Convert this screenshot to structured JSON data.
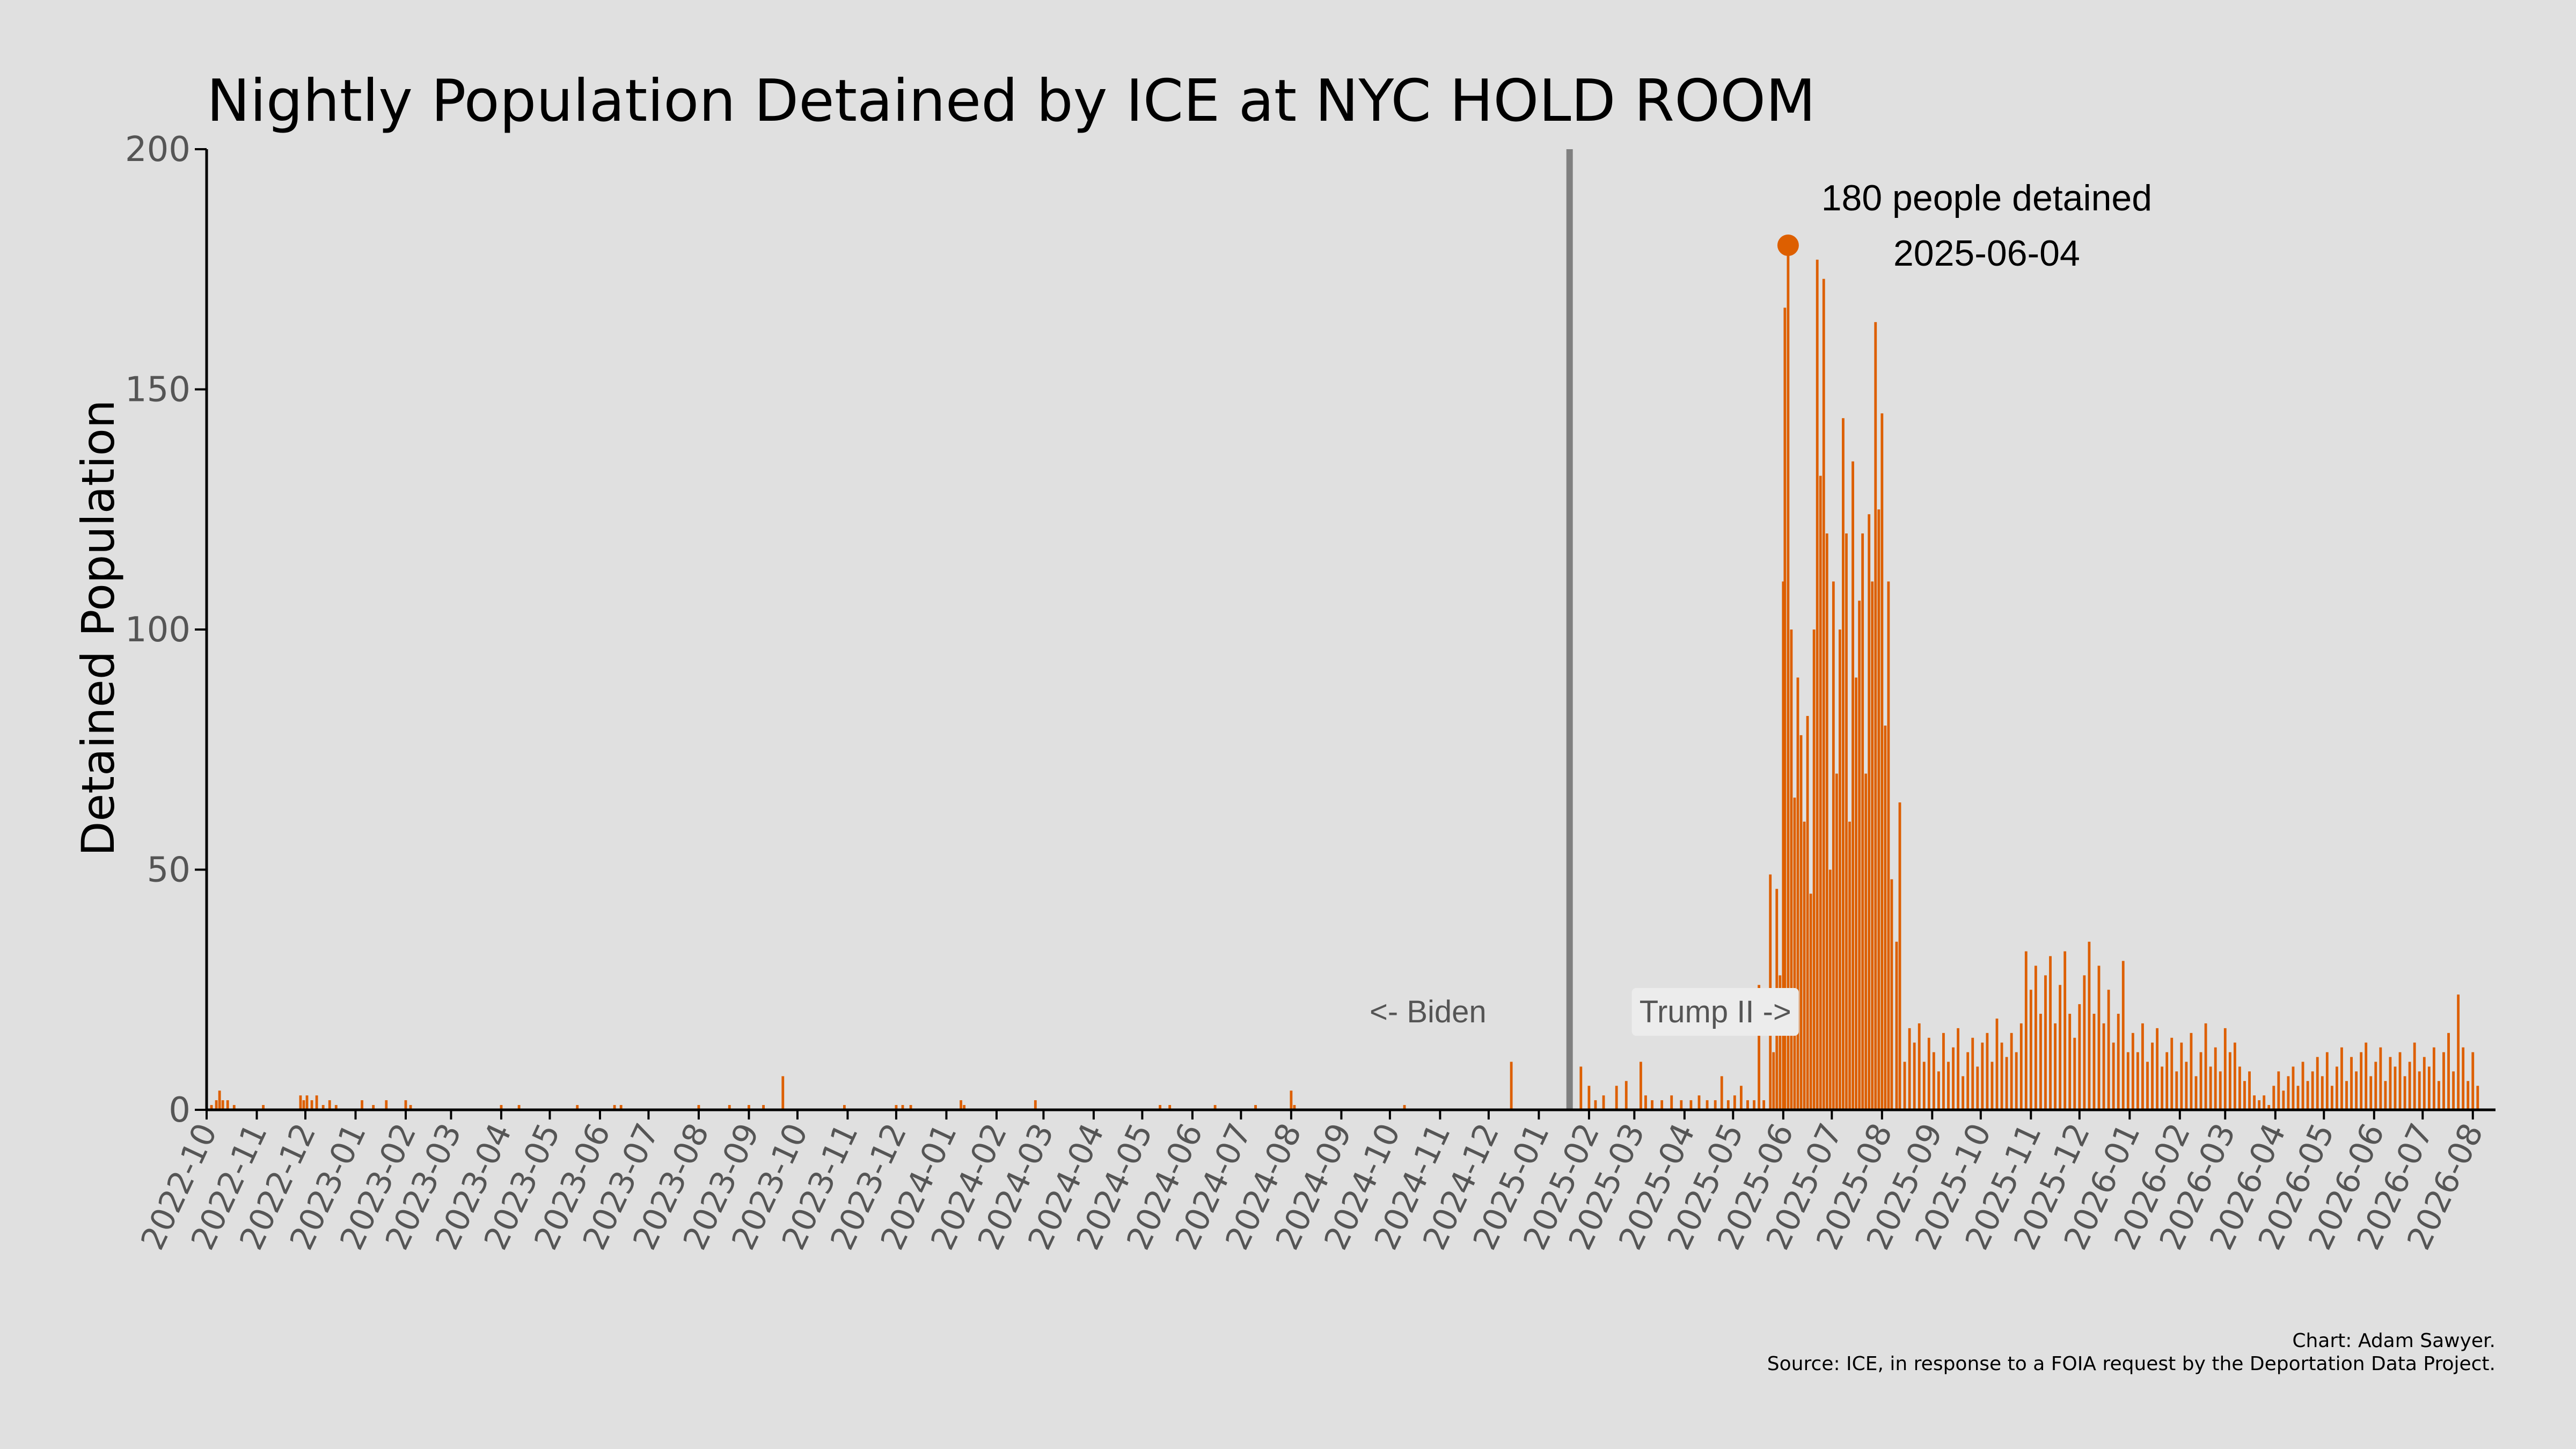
{
  "chart_data": {
    "type": "bar",
    "title": "Nightly Population Detained by ICE at NYC HOLD ROOM",
    "ylabel": "Detained Population",
    "xlabel": "",
    "ylim": [
      0,
      200
    ],
    "yticks": [
      0,
      50,
      100,
      150,
      200
    ],
    "xlim": [
      "2022-10-01",
      "2026-08-15"
    ],
    "xticks": [
      "2022-10",
      "2022-11",
      "2022-12",
      "2023-01",
      "2023-02",
      "2023-03",
      "2023-04",
      "2023-05",
      "2023-06",
      "2023-07",
      "2023-08",
      "2023-09",
      "2023-10",
      "2023-11",
      "2023-12",
      "2024-01",
      "2024-02",
      "2024-03",
      "2024-04",
      "2024-05",
      "2024-06",
      "2024-07",
      "2024-08",
      "2024-09",
      "2024-10",
      "2024-11",
      "2024-12",
      "2025-01",
      "2025-02",
      "2025-03",
      "2025-04",
      "2025-05",
      "2025-06",
      "2025-07",
      "2025-08",
      "2025-09",
      "2025-10",
      "2025-11",
      "2025-12",
      "2026-01",
      "2026-02",
      "2026-03",
      "2026-04",
      "2026-05",
      "2026-06",
      "2026-07",
      "2026-08"
    ],
    "grid": false,
    "bar_color": "#dd5f00",
    "divider_date": "2025-01-20",
    "divider_color": "#808080",
    "series": [
      {
        "values": [
          [
            "2022-10-01",
            3
          ],
          [
            "2022-10-04",
            1
          ],
          [
            "2022-10-07",
            2
          ],
          [
            "2022-10-09",
            4
          ],
          [
            "2022-10-11",
            2
          ],
          [
            "2022-10-14",
            2
          ],
          [
            "2022-10-18",
            1
          ],
          [
            "2022-11-05",
            1
          ],
          [
            "2022-11-28",
            3
          ],
          [
            "2022-11-30",
            2
          ],
          [
            "2022-12-02",
            3
          ],
          [
            "2022-12-05",
            2
          ],
          [
            "2022-12-08",
            3
          ],
          [
            "2022-12-12",
            1
          ],
          [
            "2022-12-16",
            2
          ],
          [
            "2022-12-20",
            1
          ],
          [
            "2023-01-05",
            2
          ],
          [
            "2023-01-12",
            1
          ],
          [
            "2023-01-20",
            2
          ],
          [
            "2023-02-01",
            2
          ],
          [
            "2023-02-04",
            1
          ],
          [
            "2023-04-01",
            1
          ],
          [
            "2023-04-12",
            1
          ],
          [
            "2023-05-18",
            1
          ],
          [
            "2023-06-10",
            1
          ],
          [
            "2023-06-14",
            1
          ],
          [
            "2023-08-01",
            1
          ],
          [
            "2023-08-20",
            1
          ],
          [
            "2023-09-01",
            1
          ],
          [
            "2023-09-10",
            1
          ],
          [
            "2023-09-22",
            7
          ],
          [
            "2023-10-30",
            1
          ],
          [
            "2023-12-01",
            1
          ],
          [
            "2023-12-05",
            1
          ],
          [
            "2023-12-10",
            1
          ],
          [
            "2024-01-10",
            2
          ],
          [
            "2024-01-12",
            1
          ],
          [
            "2024-02-25",
            2
          ],
          [
            "2024-05-12",
            1
          ],
          [
            "2024-05-18",
            1
          ],
          [
            "2024-06-15",
            1
          ],
          [
            "2024-07-10",
            1
          ],
          [
            "2024-08-01",
            4
          ],
          [
            "2024-08-03",
            1
          ],
          [
            "2024-10-10",
            1
          ],
          [
            "2024-12-15",
            10
          ],
          [
            "2025-01-27",
            9
          ],
          [
            "2025-02-01",
            5
          ],
          [
            "2025-02-05",
            2
          ],
          [
            "2025-02-10",
            3
          ],
          [
            "2025-02-18",
            5
          ],
          [
            "2025-02-24",
            6
          ],
          [
            "2025-03-05",
            10
          ],
          [
            "2025-03-08",
            3
          ],
          [
            "2025-03-12",
            2
          ],
          [
            "2025-03-18",
            2
          ],
          [
            "2025-03-24",
            3
          ],
          [
            "2025-03-30",
            2
          ],
          [
            "2025-04-05",
            2
          ],
          [
            "2025-04-10",
            3
          ],
          [
            "2025-04-15",
            2
          ],
          [
            "2025-04-20",
            2
          ],
          [
            "2025-04-24",
            7
          ],
          [
            "2025-04-28",
            2
          ],
          [
            "2025-05-02",
            3
          ],
          [
            "2025-05-06",
            5
          ],
          [
            "2025-05-10",
            2
          ],
          [
            "2025-05-14",
            2
          ],
          [
            "2025-05-17",
            26
          ],
          [
            "2025-05-20",
            2
          ],
          [
            "2025-05-24",
            49
          ],
          [
            "2025-05-26",
            12
          ],
          [
            "2025-05-28",
            46
          ],
          [
            "2025-05-30",
            28
          ],
          [
            "2025-06-01",
            110
          ],
          [
            "2025-06-02",
            167
          ],
          [
            "2025-06-04",
            180
          ],
          [
            "2025-06-06",
            100
          ],
          [
            "2025-06-08",
            65
          ],
          [
            "2025-06-10",
            90
          ],
          [
            "2025-06-12",
            78
          ],
          [
            "2025-06-14",
            60
          ],
          [
            "2025-06-16",
            82
          ],
          [
            "2025-06-18",
            45
          ],
          [
            "2025-06-20",
            100
          ],
          [
            "2025-06-22",
            177
          ],
          [
            "2025-06-24",
            132
          ],
          [
            "2025-06-26",
            173
          ],
          [
            "2025-06-28",
            120
          ],
          [
            "2025-06-30",
            50
          ],
          [
            "2025-07-02",
            110
          ],
          [
            "2025-07-04",
            70
          ],
          [
            "2025-07-06",
            100
          ],
          [
            "2025-07-08",
            144
          ],
          [
            "2025-07-10",
            120
          ],
          [
            "2025-07-12",
            60
          ],
          [
            "2025-07-14",
            135
          ],
          [
            "2025-07-16",
            90
          ],
          [
            "2025-07-18",
            106
          ],
          [
            "2025-07-20",
            120
          ],
          [
            "2025-07-22",
            70
          ],
          [
            "2025-07-24",
            124
          ],
          [
            "2025-07-26",
            110
          ],
          [
            "2025-07-28",
            164
          ],
          [
            "2025-07-30",
            125
          ],
          [
            "2025-08-01",
            145
          ],
          [
            "2025-08-03",
            80
          ],
          [
            "2025-08-05",
            110
          ],
          [
            "2025-08-07",
            48
          ],
          [
            "2025-08-10",
            35
          ],
          [
            "2025-08-12",
            64
          ],
          [
            "2025-08-15",
            10
          ],
          [
            "2025-08-18",
            17
          ],
          [
            "2025-08-21",
            14
          ],
          [
            "2025-08-24",
            18
          ],
          [
            "2025-08-27",
            10
          ],
          [
            "2025-08-30",
            15
          ],
          [
            "2025-09-02",
            12
          ],
          [
            "2025-09-05",
            8
          ],
          [
            "2025-09-08",
            16
          ],
          [
            "2025-09-11",
            10
          ],
          [
            "2025-09-14",
            13
          ],
          [
            "2025-09-17",
            17
          ],
          [
            "2025-09-20",
            7
          ],
          [
            "2025-09-23",
            12
          ],
          [
            "2025-09-26",
            15
          ],
          [
            "2025-09-29",
            9
          ],
          [
            "2025-10-02",
            14
          ],
          [
            "2025-10-05",
            16
          ],
          [
            "2025-10-08",
            10
          ],
          [
            "2025-10-11",
            19
          ],
          [
            "2025-10-14",
            14
          ],
          [
            "2025-10-17",
            11
          ],
          [
            "2025-10-20",
            16
          ],
          [
            "2025-10-23",
            12
          ],
          [
            "2025-10-26",
            18
          ],
          [
            "2025-10-29",
            33
          ],
          [
            "2025-11-01",
            25
          ],
          [
            "2025-11-04",
            30
          ],
          [
            "2025-11-07",
            20
          ],
          [
            "2025-11-10",
            28
          ],
          [
            "2025-11-13",
            32
          ],
          [
            "2025-11-16",
            18
          ],
          [
            "2025-11-19",
            26
          ],
          [
            "2025-11-22",
            33
          ],
          [
            "2025-11-25",
            20
          ],
          [
            "2025-11-28",
            15
          ],
          [
            "2025-12-01",
            22
          ],
          [
            "2025-12-04",
            28
          ],
          [
            "2025-12-07",
            35
          ],
          [
            "2025-12-10",
            20
          ],
          [
            "2025-12-13",
            30
          ],
          [
            "2025-12-16",
            18
          ],
          [
            "2025-12-19",
            25
          ],
          [
            "2025-12-22",
            14
          ],
          [
            "2025-12-25",
            20
          ],
          [
            "2025-12-28",
            31
          ],
          [
            "2025-12-31",
            12
          ],
          [
            "2026-01-03",
            16
          ],
          [
            "2026-01-06",
            12
          ],
          [
            "2026-01-09",
            18
          ],
          [
            "2026-01-12",
            10
          ],
          [
            "2026-01-15",
            14
          ],
          [
            "2026-01-18",
            17
          ],
          [
            "2026-01-21",
            9
          ],
          [
            "2026-01-24",
            12
          ],
          [
            "2026-01-27",
            15
          ],
          [
            "2026-01-30",
            8
          ],
          [
            "2026-02-02",
            14
          ],
          [
            "2026-02-05",
            10
          ],
          [
            "2026-02-08",
            16
          ],
          [
            "2026-02-11",
            7
          ],
          [
            "2026-02-14",
            12
          ],
          [
            "2026-02-17",
            18
          ],
          [
            "2026-02-20",
            9
          ],
          [
            "2026-02-23",
            13
          ],
          [
            "2026-02-26",
            8
          ],
          [
            "2026-03-01",
            17
          ],
          [
            "2026-03-04",
            12
          ],
          [
            "2026-03-07",
            14
          ],
          [
            "2026-03-10",
            9
          ],
          [
            "2026-03-13",
            6
          ],
          [
            "2026-03-16",
            8
          ],
          [
            "2026-03-19",
            3
          ],
          [
            "2026-03-22",
            2
          ],
          [
            "2026-03-25",
            3
          ],
          [
            "2026-03-28",
            1
          ],
          [
            "2026-03-31",
            5
          ],
          [
            "2026-04-03",
            8
          ],
          [
            "2026-04-06",
            4
          ],
          [
            "2026-04-09",
            7
          ],
          [
            "2026-04-12",
            9
          ],
          [
            "2026-04-15",
            5
          ],
          [
            "2026-04-18",
            10
          ],
          [
            "2026-04-21",
            6
          ],
          [
            "2026-04-24",
            8
          ],
          [
            "2026-04-27",
            11
          ],
          [
            "2026-04-30",
            7
          ],
          [
            "2026-05-03",
            12
          ],
          [
            "2026-05-06",
            5
          ],
          [
            "2026-05-09",
            9
          ],
          [
            "2026-05-12",
            13
          ],
          [
            "2026-05-15",
            6
          ],
          [
            "2026-05-18",
            11
          ],
          [
            "2026-05-21",
            8
          ],
          [
            "2026-05-24",
            12
          ],
          [
            "2026-05-27",
            14
          ],
          [
            "2026-05-30",
            7
          ],
          [
            "2026-06-02",
            10
          ],
          [
            "2026-06-05",
            13
          ],
          [
            "2026-06-08",
            6
          ],
          [
            "2026-06-11",
            11
          ],
          [
            "2026-06-14",
            9
          ],
          [
            "2026-06-17",
            12
          ],
          [
            "2026-06-20",
            7
          ],
          [
            "2026-06-23",
            10
          ],
          [
            "2026-06-26",
            14
          ],
          [
            "2026-06-29",
            8
          ],
          [
            "2026-07-02",
            11
          ],
          [
            "2026-07-05",
            9
          ],
          [
            "2026-07-08",
            13
          ],
          [
            "2026-07-11",
            6
          ],
          [
            "2026-07-14",
            12
          ],
          [
            "2026-07-17",
            16
          ],
          [
            "2026-07-20",
            8
          ],
          [
            "2026-07-23",
            24
          ],
          [
            "2026-07-26",
            13
          ],
          [
            "2026-07-29",
            6
          ],
          [
            "2026-08-01",
            12
          ],
          [
            "2026-08-04",
            5
          ]
        ]
      }
    ],
    "annotations": {
      "peak": {
        "date": "2025-06-04",
        "value": 180,
        "label_line1": "180 people detained",
        "label_line2": "2025-06-04",
        "color": "#dd5f00"
      },
      "biden_label": "<- Biden",
      "trump_label": "Trump II ->"
    }
  },
  "caption": {
    "line1": "Chart: Adam Sawyer.",
    "line2": "Source: ICE, in response to a FOIA request by the Deportation Data Project."
  }
}
